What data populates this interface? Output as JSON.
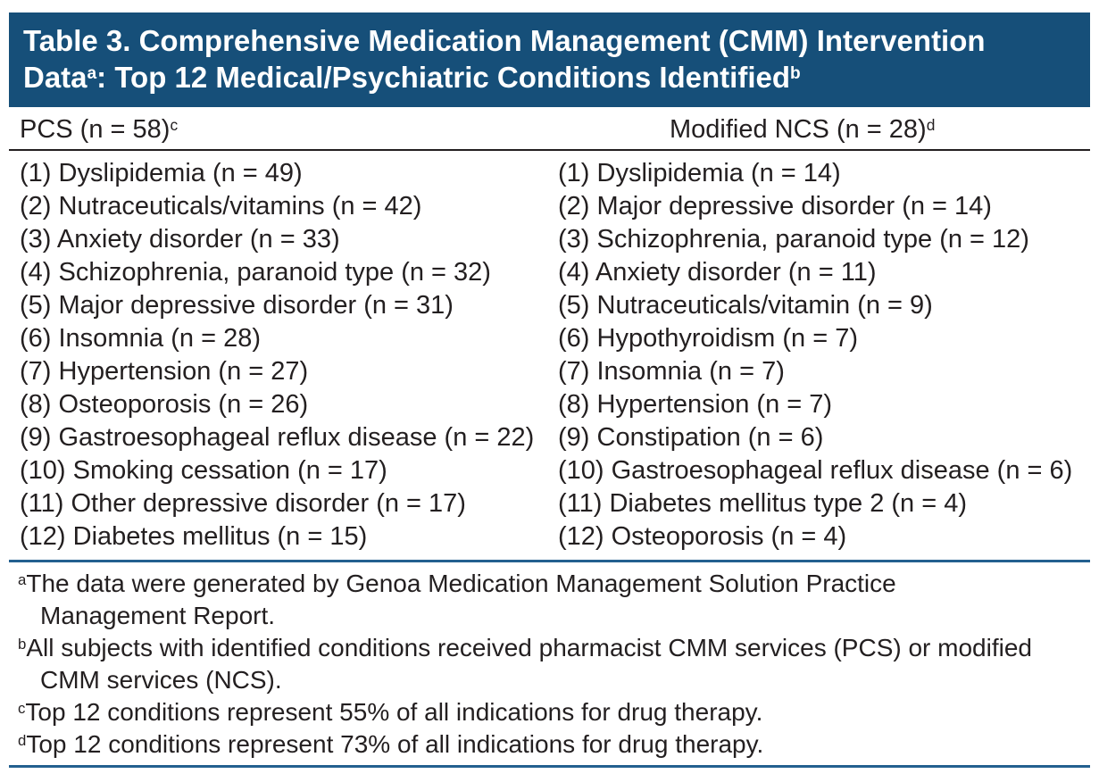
{
  "accent": {
    "band_bg": "#164F79",
    "rule_blue": "#23608F",
    "text_color": "#231F20"
  },
  "title": {
    "line1": "Table 3. Comprehensive Medication Management (CMM) Intervention",
    "line2_data": "Data",
    "sup_a": "a",
    "line2_rest": ": Top 12 Medical/Psychiatric Conditions Identified",
    "sup_b": "b"
  },
  "columns": {
    "left": {
      "header": "PCS (n = 58)",
      "header_sup": "c",
      "items": [
        "(1) Dyslipidemia (n = 49)",
        "(2) Nutraceuticals/vitamins (n = 42)",
        "(3) Anxiety disorder (n = 33)",
        "(4) Schizophrenia, paranoid type (n = 32)",
        "(5) Major depressive disorder (n = 31)",
        "(6) Insomnia (n = 28)",
        "(7) Hypertension (n = 27)",
        "(8) Osteoporosis (n = 26)",
        "(9) Gastroesophageal reflux disease (n = 22)",
        "(10) Smoking cessation (n = 17)",
        "(11) Other depressive disorder (n = 17)",
        "(12) Diabetes mellitus (n = 15)"
      ]
    },
    "right": {
      "header": "Modified NCS (n = 28)",
      "header_sup": "d",
      "items": [
        "(1) Dyslipidemia (n = 14)",
        "(2) Major depressive disorder (n = 14)",
        "(3) Schizophrenia, paranoid type (n = 12)",
        "(4) Anxiety disorder (n = 11)",
        "(5) Nutraceuticals/vitamin (n = 9)",
        "(6) Hypothyroidism (n = 7)",
        "(7) Insomnia (n = 7)",
        "(8) Hypertension (n = 7)",
        "(9) Constipation (n = 6)",
        "(10) Gastroesophageal reflux disease (n = 6)",
        "(11) Diabetes mellitus type 2 (n = 4)",
        "(12) Osteoporosis (n = 4)"
      ]
    }
  },
  "footnotes": [
    {
      "marker": "a",
      "line1": "The data were generated by Genoa Medication Management Solution Practice",
      "line2": "Management Report."
    },
    {
      "marker": "b",
      "line1": "All subjects with identified conditions received pharmacist CMM services (PCS) or modified",
      "line2": "CMM services (NCS)."
    },
    {
      "marker": "c",
      "line1": "Top 12 conditions represent 55% of all indications for drug therapy.",
      "line2": ""
    },
    {
      "marker": "d",
      "line1": "Top 12 conditions represent 73% of all indications for drug therapy.",
      "line2": ""
    }
  ]
}
